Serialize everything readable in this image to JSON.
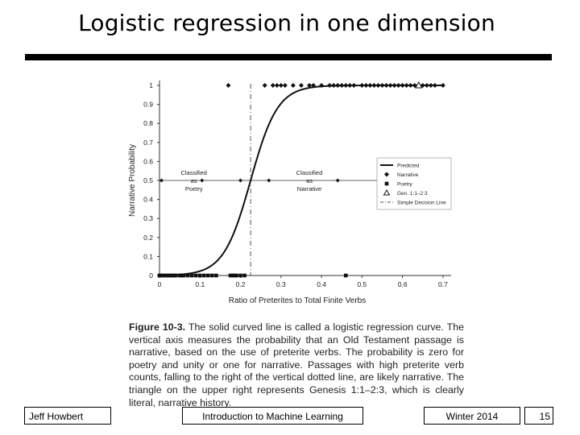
{
  "slide": {
    "title": "Logistic regression in one dimension",
    "caption_label": "Figure 10-3.",
    "caption_text": " The solid curved line is called a logistic regression curve. The vertical axis measures the probability that an Old Testament passage is narrative, based on the use of preterite verbs. The probability is zero for poetry and unity or one for narrative. Passages with high preterite verb counts, falling to the right of the vertical dotted line, are likely narrative. The triangle on the upper right represents Genesis 1:1–2:3, which is clearly literal, narrative history.",
    "footer": {
      "author": "Jeff Howbert",
      "course": "Introduction to Machine Learning",
      "date": "Winter 2014",
      "page": "15"
    }
  },
  "chart_data": {
    "type": "scatter",
    "xlabel": "Ratio of Preterites to Total Finite Verbs",
    "ylabel": "Narrative Probability",
    "xlim": [
      0,
      0.72
    ],
    "ylim": [
      0,
      1
    ],
    "x_ticks": [
      "0",
      "0.1",
      "0.2",
      "0.3",
      "0.4",
      "0.5",
      "0.6",
      "0.7"
    ],
    "y_ticks": [
      "0",
      "0.1",
      "0.2",
      "0.3",
      "0.4",
      "0.5",
      "0.6",
      "0.7",
      "0.8",
      "0.9",
      "1"
    ],
    "grid": false,
    "legend": {
      "placement": "right",
      "entries": [
        "Predicted",
        "Narrative",
        "Poetry",
        "Gen. 1:1–2:3",
        "Simple Decision Line"
      ]
    },
    "decision_line_x": 0.225,
    "curve": {
      "midpoint": 0.225,
      "steepness": 30
    },
    "annotations": [
      {
        "lines": [
          "Classified",
          "as",
          "Poetry"
        ],
        "x": 0.085,
        "y": 0.53
      },
      {
        "lines": [
          "Classified",
          "as",
          "Narrative"
        ],
        "x": 0.37,
        "y": 0.53
      }
    ],
    "arrow_row_y": 0.5,
    "series": [
      {
        "name": "Narrative",
        "y": 1,
        "x": [
          0.17,
          0.26,
          0.28,
          0.29,
          0.3,
          0.31,
          0.33,
          0.35,
          0.37,
          0.38,
          0.4,
          0.42,
          0.43,
          0.44,
          0.45,
          0.46,
          0.47,
          0.48,
          0.5,
          0.51,
          0.52,
          0.53,
          0.54,
          0.55,
          0.56,
          0.57,
          0.58,
          0.59,
          0.6,
          0.61,
          0.62,
          0.63,
          0.65,
          0.66,
          0.67,
          0.68,
          0.7
        ]
      },
      {
        "name": "Poetry",
        "y": 0,
        "x": [
          0.0,
          0.005,
          0.01,
          0.015,
          0.02,
          0.025,
          0.03,
          0.035,
          0.04,
          0.05,
          0.055,
          0.06,
          0.07,
          0.08,
          0.09,
          0.1,
          0.11,
          0.12,
          0.13,
          0.14,
          0.175,
          0.18,
          0.185,
          0.19,
          0.2,
          0.21,
          0.46
        ]
      },
      {
        "name": "Gen. 1:1–2:3",
        "y": 1,
        "x": [
          0.64
        ]
      }
    ]
  }
}
